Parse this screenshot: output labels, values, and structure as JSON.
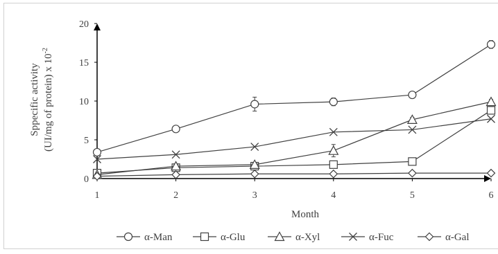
{
  "chart_data": {
    "type": "line",
    "xlabel": "Month",
    "ylabel_line1": "Sppecific activity",
    "ylabel_line2": "(UI/mg of protein) x 10",
    "ylabel_superscript": "-2",
    "x": [
      1,
      2,
      3,
      4,
      5,
      6
    ],
    "xlim": [
      1,
      6
    ],
    "ylim": [
      0,
      20
    ],
    "y_ticks": [
      0,
      5,
      10,
      15,
      20
    ],
    "x_ticks": [
      1,
      2,
      3,
      4,
      5,
      6
    ],
    "grid": false,
    "legend_position": "bottom",
    "series": [
      {
        "name": "α-Man",
        "marker": "circle",
        "values": [
          3.4,
          6.4,
          9.6,
          9.9,
          10.8,
          17.3
        ],
        "errors": [
          0.2,
          0.2,
          0.9,
          0.5,
          0.3,
          0.5
        ]
      },
      {
        "name": "α-Glu",
        "marker": "square",
        "values": [
          0.7,
          1.4,
          1.6,
          1.8,
          2.2,
          8.8
        ],
        "errors": [
          0.1,
          0.1,
          0.1,
          0.1,
          0.1,
          0.5
        ]
      },
      {
        "name": "α-Xyl",
        "marker": "triangle",
        "values": [
          0.5,
          1.6,
          1.8,
          3.6,
          7.6,
          9.9
        ],
        "errors": [
          0.1,
          0.2,
          0.2,
          0.8,
          0.3,
          0.3
        ]
      },
      {
        "name": "α-Fuc",
        "marker": "x",
        "values": [
          2.5,
          3.1,
          4.1,
          6.0,
          6.3,
          7.7
        ],
        "errors": [
          0,
          0,
          0,
          0,
          0,
          0
        ]
      },
      {
        "name": "α-Gal",
        "marker": "diamond",
        "values": [
          0.3,
          0.5,
          0.6,
          0.6,
          0.7,
          0.7
        ],
        "errors": [
          0,
          0,
          0,
          0,
          0,
          0
        ]
      }
    ],
    "colors": {
      "line": "#404040",
      "axis": "#000000",
      "text": "#404040"
    }
  }
}
